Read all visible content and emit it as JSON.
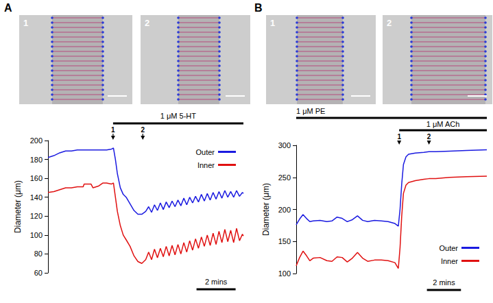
{
  "panels": [
    {
      "label": "A",
      "image_labels": [
        "1",
        "2"
      ]
    },
    {
      "label": "B",
      "image_labels": [
        "1",
        "2"
      ]
    }
  ],
  "chart_data": [
    {
      "type": "line",
      "y_label": "Diameter (μm)",
      "xlim": [
        0,
        10
      ],
      "ylim": [
        60,
        200
      ],
      "yticks": [
        60,
        80,
        100,
        120,
        140,
        160,
        180,
        200
      ],
      "tick_labels": "y",
      "legend": "upper right",
      "treatments": [
        {
          "label": "1 μM 5-HT",
          "start": 3.33,
          "end": 10
        }
      ],
      "markers": [
        {
          "label": "1",
          "x": 3.33
        },
        {
          "label": "2",
          "x": 4.85
        }
      ],
      "scale_bar": {
        "label": "2 mins",
        "start": 7.6,
        "end": 9.6
      },
      "series": [
        {
          "name": "Outer",
          "color": "#1a1ae0",
          "x": [
            0,
            0.3,
            0.6,
            0.9,
            1.2,
            1.5,
            2,
            2.5,
            3,
            3.25,
            3.35,
            3.45,
            3.55,
            3.7,
            3.85,
            4.0,
            4.2,
            4.4,
            4.6,
            4.8,
            5.0,
            5.15,
            5.3,
            5.45,
            5.6,
            5.75,
            5.9,
            6.05,
            6.2,
            6.35,
            6.5,
            6.65,
            6.8,
            6.95,
            7.1,
            7.25,
            7.4,
            7.55,
            7.7,
            7.85,
            8.0,
            8.15,
            8.3,
            8.45,
            8.6,
            8.75,
            8.9,
            9.05,
            9.2,
            9.35,
            9.5,
            9.65,
            9.8,
            9.95,
            10
          ],
          "values": [
            182,
            184,
            187,
            189,
            189,
            190,
            190,
            190,
            190,
            191,
            192,
            180,
            165,
            150,
            143,
            140,
            133,
            126,
            122,
            122,
            125,
            130,
            124,
            132,
            126,
            134,
            127,
            135,
            129,
            136,
            130,
            137,
            131,
            139,
            132,
            140,
            134,
            141,
            135,
            143,
            136,
            144,
            137,
            145,
            138,
            146,
            139,
            147,
            140,
            146,
            140,
            147,
            141,
            145,
            144
          ]
        },
        {
          "name": "Inner",
          "color": "#e01010",
          "x": [
            0,
            0.3,
            0.6,
            0.9,
            1.2,
            1.5,
            1.8,
            1.85,
            2.2,
            2.3,
            2.6,
            2.8,
            3.0,
            3.25,
            3.35,
            3.45,
            3.55,
            3.7,
            3.85,
            4.0,
            4.2,
            4.4,
            4.6,
            4.8,
            5.0,
            5.15,
            5.3,
            5.45,
            5.6,
            5.75,
            5.9,
            6.05,
            6.2,
            6.35,
            6.5,
            6.65,
            6.8,
            6.95,
            7.1,
            7.25,
            7.4,
            7.55,
            7.7,
            7.85,
            8.0,
            8.15,
            8.3,
            8.45,
            8.6,
            8.75,
            8.9,
            9.05,
            9.2,
            9.35,
            9.5,
            9.65,
            9.8,
            9.95,
            10
          ],
          "values": [
            145,
            146,
            148,
            150,
            150,
            151,
            151,
            154,
            154,
            150,
            152,
            155,
            155,
            154,
            155,
            140,
            125,
            110,
            100,
            95,
            88,
            78,
            72,
            70,
            74,
            82,
            74,
            85,
            76,
            86,
            77,
            88,
            78,
            89,
            79,
            90,
            80,
            92,
            82,
            94,
            84,
            96,
            86,
            98,
            88,
            100,
            89,
            102,
            90,
            104,
            92,
            106,
            93,
            105,
            92,
            107,
            94,
            101,
            99
          ]
        }
      ]
    },
    {
      "type": "line",
      "y_label": "Diameter (μm)",
      "xlim": [
        0,
        11.2
      ],
      "ylim": [
        100,
        300
      ],
      "yticks": [
        100,
        150,
        200,
        250,
        300
      ],
      "tick_labels": "y",
      "legend": "lower right",
      "treatments": [
        {
          "label": "1 μM PE",
          "start": 0,
          "end": 11.2
        },
        {
          "label": "1 μM ACh",
          "start": 6.05,
          "end": 11.2
        }
      ],
      "markers": [
        {
          "label": "1",
          "x": 6.05
        },
        {
          "label": "2",
          "x": 7.8
        }
      ],
      "scale_bar": {
        "label": "2 mins",
        "start": 7.68,
        "end": 9.68
      },
      "series": [
        {
          "name": "Outer",
          "color": "#1a1ae0",
          "x": [
            0,
            0.2,
            0.4,
            0.6,
            0.8,
            1.0,
            1.4,
            1.8,
            2.1,
            2.4,
            2.7,
            3.0,
            3.3,
            3.6,
            3.9,
            4.2,
            4.6,
            5.0,
            5.4,
            5.8,
            6.0,
            6.1,
            6.2,
            6.3,
            6.45,
            6.6,
            7.0,
            7.5,
            7.8,
            8.2,
            9,
            10,
            11.2
          ],
          "values": [
            176,
            185,
            192,
            186,
            181,
            182,
            183,
            181,
            182,
            188,
            186,
            181,
            184,
            190,
            183,
            181,
            183,
            182,
            181,
            178,
            174,
            200,
            240,
            270,
            282,
            286,
            288,
            289,
            290,
            290,
            291,
            292,
            293
          ]
        },
        {
          "name": "Inner",
          "color": "#e01010",
          "x": [
            0,
            0.2,
            0.4,
            0.6,
            0.8,
            1.0,
            1.4,
            1.8,
            2.1,
            2.4,
            2.7,
            3.0,
            3.3,
            3.6,
            3.9,
            4.2,
            4.6,
            5.0,
            5.4,
            5.8,
            6.0,
            6.1,
            6.2,
            6.3,
            6.45,
            6.6,
            7.0,
            7.5,
            7.8,
            8.2,
            9,
            10,
            11.2
          ],
          "values": [
            112,
            125,
            135,
            128,
            120,
            124,
            125,
            120,
            119,
            126,
            125,
            118,
            124,
            133,
            124,
            119,
            121,
            121,
            120,
            117,
            108,
            140,
            190,
            225,
            238,
            242,
            245,
            247,
            248,
            248,
            250,
            251,
            252
          ]
        }
      ]
    }
  ]
}
